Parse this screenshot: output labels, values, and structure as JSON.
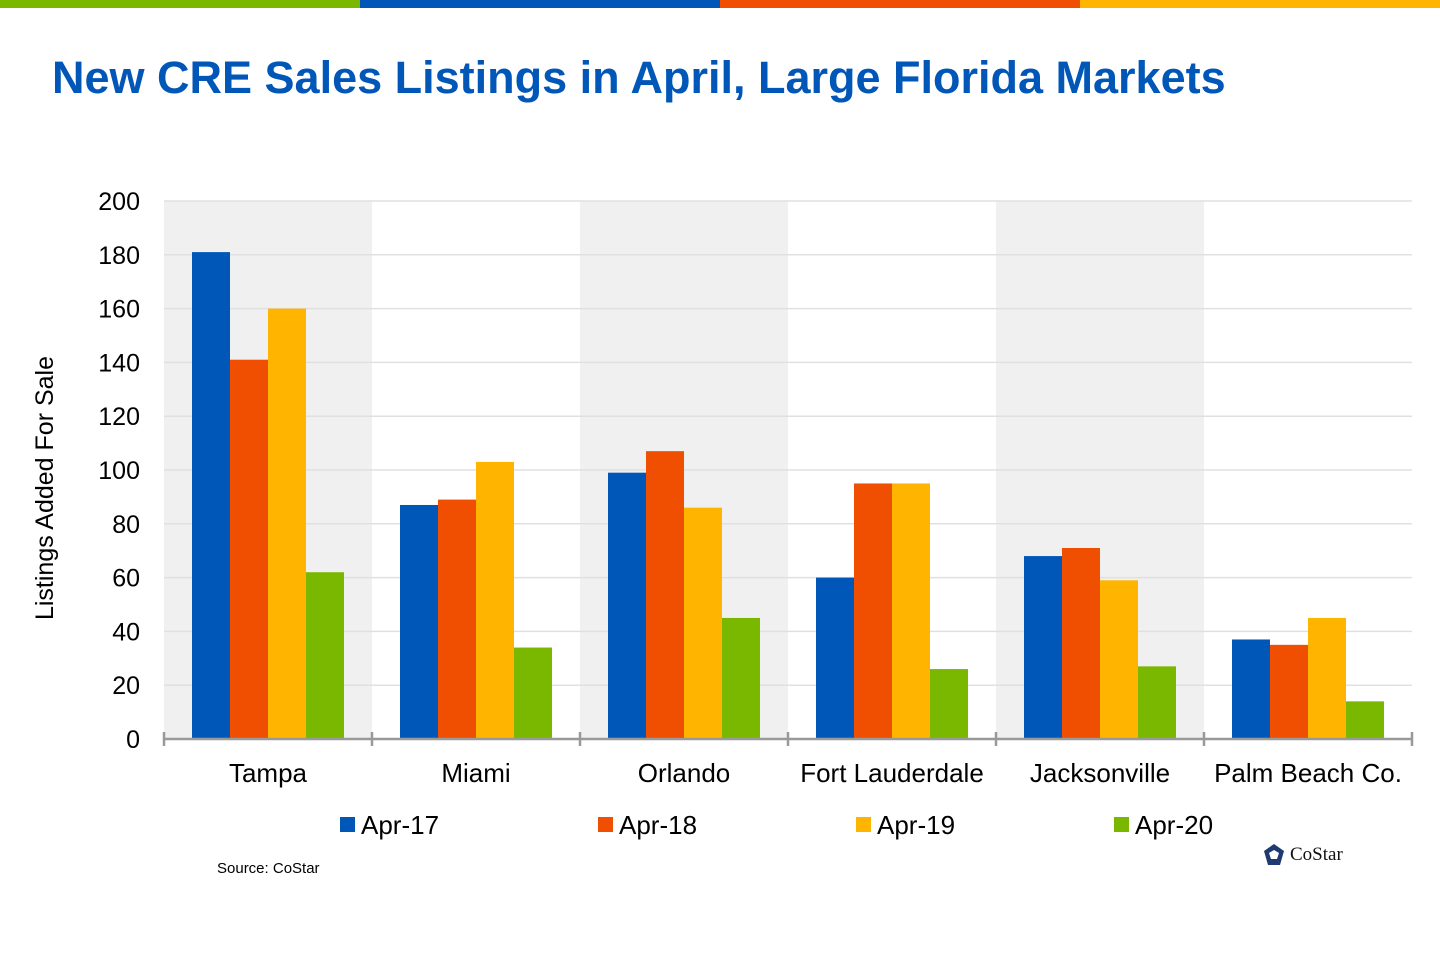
{
  "title": "New CRE Sales Listings in April, Large Florida Markets",
  "source": "Source: CoStar",
  "logo_text": "CoStar",
  "top_stripe_colors": [
    "#7ab800",
    "#0057b8",
    "#f04e00",
    "#ffb500"
  ],
  "chart_data": {
    "type": "bar",
    "title": "",
    "xlabel": "",
    "ylabel": "Listings Added For Sale",
    "ylim": [
      0,
      200
    ],
    "yticks": [
      0,
      20,
      40,
      60,
      80,
      100,
      120,
      140,
      160,
      180,
      200
    ],
    "grid": true,
    "legend_position": "bottom",
    "categories": [
      "Tampa",
      "Miami",
      "Orlando",
      "Fort Lauderdale",
      "Jacksonville",
      "Palm Beach Co."
    ],
    "series": [
      {
        "name": "Apr-17",
        "color": "#0057b8",
        "values": [
          181,
          87,
          99,
          60,
          68,
          37
        ]
      },
      {
        "name": "Apr-18",
        "color": "#f04e00",
        "values": [
          141,
          89,
          107,
          95,
          71,
          35
        ]
      },
      {
        "name": "Apr-19",
        "color": "#ffb500",
        "values": [
          160,
          103,
          86,
          95,
          59,
          45
        ]
      },
      {
        "name": "Apr-20",
        "color": "#7ab800",
        "values": [
          62,
          34,
          45,
          26,
          27,
          14
        ]
      }
    ]
  }
}
